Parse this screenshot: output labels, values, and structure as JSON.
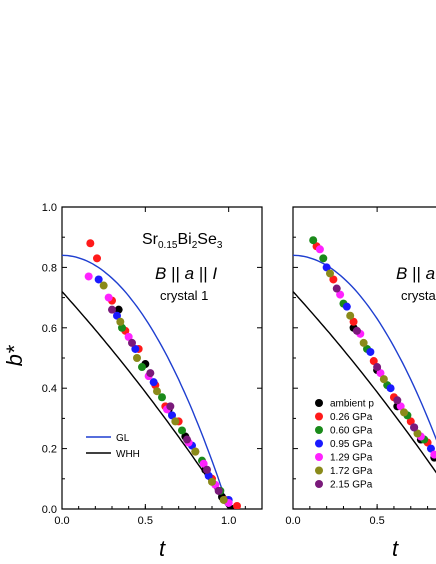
{
  "chart_data": [
    {
      "type": "scatter",
      "panel": "left",
      "xlabel": "t",
      "ylabel": "b*",
      "xlim": [
        0,
        1.2
      ],
      "ylim": [
        0,
        1.0
      ],
      "xticks": [
        "0.0",
        "0.5",
        "1.0"
      ],
      "yticks": [
        "0.0",
        "0.2",
        "0.4",
        "0.6",
        "0.8",
        "1.0"
      ],
      "annotations": {
        "compound": {
          "base1": "Sr",
          "sub1": "0.15",
          "base2": "Bi",
          "sub2": "2",
          "base3": "Se",
          "sub3": "3"
        },
        "orientation": {
          "p1": "B",
          "p2": " || ",
          "p3": "a",
          "p4": " || ",
          "p5": "I"
        },
        "sample": "crystal 1"
      },
      "legend": {
        "placement": "bottom-left",
        "entries": [
          {
            "label": "GL",
            "color": "#1f3fd0"
          },
          {
            "label": "WHH",
            "color": "#000000"
          }
        ]
      },
      "curves": [
        {
          "name": "GL",
          "color": "#1f3fd0",
          "y0": 0.84
        },
        {
          "name": "WHH",
          "color": "#000000",
          "y0": 0.72
        }
      ],
      "series": [
        {
          "name": "ambient p",
          "color": "#000000",
          "points": [
            [
              0.34,
              0.66
            ],
            [
              0.5,
              0.48
            ],
            [
              0.64,
              0.33
            ],
            [
              0.74,
              0.24
            ],
            [
              0.86,
              0.13
            ],
            [
              0.96,
              0.04
            ],
            [
              1.02,
              0.0
            ]
          ]
        },
        {
          "name": "0.26 GPa",
          "color": "#ff1a1a",
          "points": [
            [
              0.17,
              0.88
            ],
            [
              0.21,
              0.83
            ],
            [
              0.3,
              0.69
            ],
            [
              0.38,
              0.59
            ],
            [
              0.46,
              0.53
            ],
            [
              0.56,
              0.41
            ],
            [
              0.62,
              0.34
            ],
            [
              0.7,
              0.29
            ],
            [
              0.8,
              0.19
            ],
            [
              0.9,
              0.1
            ],
            [
              0.98,
              0.03
            ],
            [
              1.05,
              0.01
            ]
          ]
        },
        {
          "name": "0.60 GPa",
          "color": "#1a8a1a",
          "points": [
            [
              0.36,
              0.6
            ],
            [
              0.48,
              0.47
            ],
            [
              0.6,
              0.37
            ],
            [
              0.72,
              0.26
            ],
            [
              0.84,
              0.16
            ],
            [
              0.95,
              0.06
            ]
          ]
        },
        {
          "name": "0.95 GPa",
          "color": "#1a1aff",
          "points": [
            [
              0.22,
              0.76
            ],
            [
              0.33,
              0.64
            ],
            [
              0.44,
              0.53
            ],
            [
              0.55,
              0.42
            ],
            [
              0.66,
              0.31
            ],
            [
              0.78,
              0.21
            ],
            [
              0.88,
              0.11
            ],
            [
              1.0,
              0.03
            ]
          ]
        },
        {
          "name": "1.29 GPa",
          "color": "#ff22ff",
          "points": [
            [
              0.16,
              0.77
            ],
            [
              0.28,
              0.7
            ],
            [
              0.4,
              0.57
            ],
            [
              0.52,
              0.44
            ],
            [
              0.63,
              0.33
            ],
            [
              0.76,
              0.22
            ],
            [
              0.85,
              0.15
            ],
            [
              0.92,
              0.08
            ],
            [
              1.0,
              0.02
            ]
          ]
        },
        {
          "name": "1.72 GPa",
          "color": "#8a8a1a",
          "points": [
            [
              0.25,
              0.74
            ],
            [
              0.35,
              0.62
            ],
            [
              0.45,
              0.5
            ],
            [
              0.57,
              0.39
            ],
            [
              0.68,
              0.29
            ],
            [
              0.8,
              0.19
            ],
            [
              0.9,
              0.09
            ],
            [
              0.97,
              0.03
            ]
          ]
        },
        {
          "name": "2.15 GPa",
          "color": "#7a1a7a",
          "points": [
            [
              0.3,
              0.66
            ],
            [
              0.42,
              0.55
            ],
            [
              0.53,
              0.45
            ],
            [
              0.65,
              0.34
            ],
            [
              0.75,
              0.23
            ],
            [
              0.87,
              0.13
            ],
            [
              0.94,
              0.06
            ]
          ]
        }
      ]
    },
    {
      "type": "scatter",
      "panel": "right",
      "xlabel": "t",
      "xlim": [
        0,
        0.85
      ],
      "ylim": [
        0,
        1.0
      ],
      "xticks": [
        "0.0",
        "0.5"
      ],
      "annotations": {
        "orientation": {
          "p1": "B",
          "p2": " || ",
          "p3": "a"
        },
        "sample": "crysta"
      },
      "legend": {
        "placement": "bottom-left",
        "entries": [
          {
            "label": "ambient p",
            "color": "#000000"
          },
          {
            "label": "0.26 GPa",
            "color": "#ff1a1a"
          },
          {
            "label": "0.60 GPa",
            "color": "#1a8a1a"
          },
          {
            "label": "0.95 GPa",
            "color": "#1a1aff"
          },
          {
            "label": "1.29 GPa",
            "color": "#ff22ff"
          },
          {
            "label": "1.72 GPa",
            "color": "#8a8a1a"
          },
          {
            "label": "2.15 GPa",
            "color": "#7a1a7a"
          }
        ]
      },
      "curves": [
        {
          "name": "GL",
          "color": "#1f3fd0",
          "y0": 0.84
        },
        {
          "name": "WHH",
          "color": "#000000",
          "y0": 0.72
        }
      ],
      "series": [
        {
          "name": "ambient p",
          "color": "#000000",
          "points": [
            [
              0.36,
              0.6
            ],
            [
              0.5,
              0.46
            ],
            [
              0.62,
              0.34
            ],
            [
              0.76,
              0.23
            ],
            [
              0.84,
              0.17
            ]
          ]
        },
        {
          "name": "0.26 GPa",
          "color": "#ff1a1a",
          "points": [
            [
              0.14,
              0.87
            ],
            [
              0.24,
              0.76
            ],
            [
              0.36,
              0.62
            ],
            [
              0.48,
              0.49
            ],
            [
              0.6,
              0.37
            ],
            [
              0.7,
              0.29
            ],
            [
              0.8,
              0.22
            ]
          ]
        },
        {
          "name": "0.60 GPa",
          "color": "#1a8a1a",
          "points": [
            [
              0.12,
              0.89
            ],
            [
              0.18,
              0.83
            ],
            [
              0.3,
              0.68
            ],
            [
              0.44,
              0.53
            ],
            [
              0.56,
              0.41
            ],
            [
              0.68,
              0.31
            ],
            [
              0.78,
              0.23
            ]
          ]
        },
        {
          "name": "0.95 GPa",
          "color": "#1a1aff",
          "points": [
            [
              0.2,
              0.8
            ],
            [
              0.32,
              0.67
            ],
            [
              0.46,
              0.52
            ],
            [
              0.58,
              0.4
            ],
            [
              0.72,
              0.27
            ],
            [
              0.82,
              0.2
            ]
          ]
        },
        {
          "name": "1.29 GPa",
          "color": "#ff22ff",
          "points": [
            [
              0.16,
              0.86
            ],
            [
              0.28,
              0.71
            ],
            [
              0.4,
              0.58
            ],
            [
              0.52,
              0.45
            ],
            [
              0.64,
              0.34
            ],
            [
              0.76,
              0.24
            ],
            [
              0.84,
              0.18
            ]
          ]
        },
        {
          "name": "1.72 GPa",
          "color": "#8a8a1a",
          "points": [
            [
              0.22,
              0.78
            ],
            [
              0.34,
              0.64
            ],
            [
              0.42,
              0.55
            ],
            [
              0.54,
              0.43
            ],
            [
              0.66,
              0.32
            ],
            [
              0.74,
              0.25
            ]
          ]
        },
        {
          "name": "2.15 GPa",
          "color": "#7a1a7a",
          "points": [
            [
              0.26,
              0.73
            ],
            [
              0.38,
              0.59
            ],
            [
              0.5,
              0.47
            ],
            [
              0.62,
              0.36
            ],
            [
              0.72,
              0.27
            ]
          ]
        }
      ]
    }
  ]
}
